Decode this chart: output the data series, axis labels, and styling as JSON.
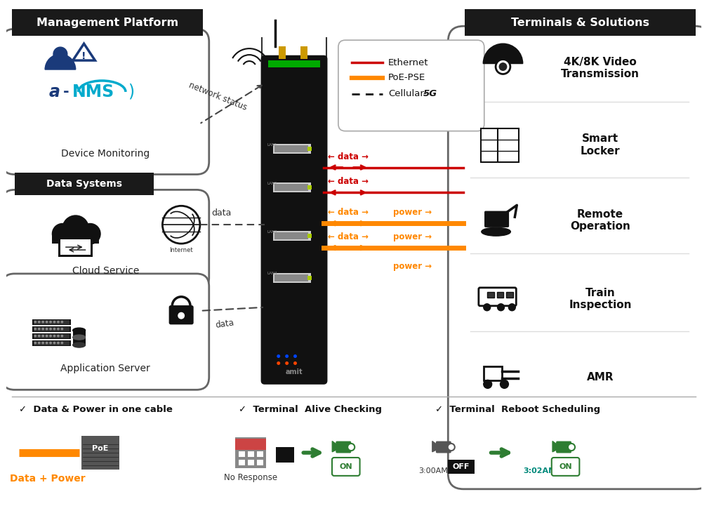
{
  "bg_color": "#ffffff",
  "left_title": "Management Platform",
  "right_title": "Terminals & Solutions",
  "data_systems_label": "Data Systems",
  "red_color": "#cc0000",
  "orange_color": "#ff8800",
  "black_color": "#111111",
  "dark_bg": "#1a1a1a",
  "gray_border": "#555555",
  "light_gray": "#aaaaaa",
  "green_color": "#2e7d32",
  "teal_color": "#00897b",
  "left_box1_label": "Device Monitoring",
  "left_box2_label": "Cloud Service",
  "left_box3_label": "Application Server",
  "legend_eth": "Ethernet",
  "legend_poe": "PoE-PSE",
  "legend_5g": "Cellular-",
  "legend_5g_bold": "5G",
  "right_label1": "4K/8K Video\nTransmission",
  "right_label2": "Smart\nLocker",
  "right_label3": "Remote\nOperation",
  "right_label4": "Train\nInspection",
  "right_label5": "AMR",
  "network_status": "network status",
  "data_label": "data",
  "power_label": "power",
  "footer_feat1": "✓  Data & Power in one cable",
  "footer_feat2": "✓  Terminal  Alive Checking",
  "footer_feat3": "✓  Terminal  Reboot Scheduling",
  "footer_dp": "Data + Power",
  "footer_no_resp": "No Response",
  "footer_3am": "3:00AM",
  "footer_off": "OFF",
  "footer_302am": "3:02AM",
  "footer_on": "ON",
  "poe_label": "PoE"
}
